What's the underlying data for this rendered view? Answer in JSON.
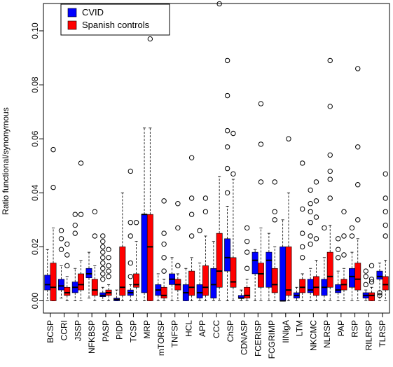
{
  "chart_data": {
    "type": "box",
    "ylabel": "Ratio functional/synonymous",
    "xlabel": "",
    "title": "",
    "ylim": [
      0,
      0.108
    ],
    "yticks": [
      0.0,
      0.02,
      0.04,
      0.06,
      0.08,
      0.1
    ],
    "ytick_labels": [
      "0.00",
      "0.02",
      "0.04",
      "0.06",
      "0.08",
      "0.10"
    ],
    "legend": {
      "position": "top-left"
    },
    "categories": [
      "BCSP",
      "CCRI",
      "JSSP",
      "NFKBSP",
      "PASP",
      "PIDP",
      "TCSP",
      "MRP",
      "mTORSP",
      "TNFSP",
      "HCL",
      "APP",
      "CCC",
      "ChSP",
      "CDNASP",
      "FCERISP",
      "FCGRIMP",
      "IINlgA",
      "LTM",
      "NKCMC",
      "NLRSP",
      "PAP",
      "RSP",
      "RILRSP",
      "TLRSP"
    ],
    "series": [
      {
        "name": "CVID",
        "color": "#0000ff",
        "boxes": [
          {
            "min": 0.0,
            "q1": 0.004,
            "median": 0.006,
            "q3": 0.0095,
            "max": 0.019,
            "outliers": []
          },
          {
            "min": 0.001,
            "q1": 0.004,
            "median": 0.0055,
            "q3": 0.008,
            "max": 0.013,
            "outliers": [
              0.019,
              0.023,
              0.026
            ]
          },
          {
            "min": 0.0,
            "q1": 0.003,
            "median": 0.005,
            "q3": 0.007,
            "max": 0.012,
            "outliers": [
              0.025,
              0.028,
              0.032
            ]
          },
          {
            "min": 0.001,
            "q1": 0.0085,
            "median": 0.01,
            "q3": 0.012,
            "max": 0.018,
            "outliers": []
          },
          {
            "min": 0.0,
            "q1": 0.0015,
            "median": 0.002,
            "q3": 0.003,
            "max": 0.005,
            "outliers": [
              0.008,
              0.01,
              0.012,
              0.014,
              0.016,
              0.018,
              0.02,
              0.022,
              0.024
            ]
          },
          {
            "min": 0.0,
            "q1": 0.0,
            "median": 0.0005,
            "q3": 0.001,
            "max": 0.004,
            "outliers": []
          },
          {
            "min": 0.0,
            "q1": 0.002,
            "median": 0.003,
            "q3": 0.004,
            "max": 0.006,
            "outliers": [
              0.009,
              0.014,
              0.024,
              0.029,
              0.048
            ]
          },
          {
            "min": 0.0,
            "q1": 0.003,
            "median": 0.032,
            "q3": 0.032,
            "max": 0.064,
            "outliers": []
          },
          {
            "min": 0.0,
            "q1": 0.002,
            "median": 0.004,
            "q3": 0.006,
            "max": 0.01,
            "outliers": []
          },
          {
            "min": 0.0,
            "q1": 0.006,
            "median": 0.008,
            "q3": 0.01,
            "max": 0.016,
            "outliers": []
          },
          {
            "min": 0.0,
            "q1": 0.0,
            "median": 0.003,
            "q3": 0.006,
            "max": 0.012,
            "outliers": []
          },
          {
            "min": 0.0,
            "q1": 0.001,
            "median": 0.003,
            "q3": 0.006,
            "max": 0.014,
            "outliers": [
              0.026
            ]
          },
          {
            "min": 0.0,
            "q1": 0.001,
            "median": 0.006,
            "q3": 0.012,
            "max": 0.022,
            "outliers": []
          },
          {
            "min": 0.0,
            "q1": 0.011,
            "median": 0.016,
            "q3": 0.023,
            "max": 0.035,
            "outliers": [
              0.04,
              0.049,
              0.057,
              0.063,
              0.076,
              0.089
            ]
          },
          {
            "min": 0.0,
            "q1": 0.001,
            "median": 0.001,
            "q3": 0.002,
            "max": 0.004,
            "outliers": []
          },
          {
            "min": 0.0,
            "q1": 0.01,
            "median": 0.015,
            "q3": 0.018,
            "max": 0.019,
            "outliers": []
          },
          {
            "min": 0.0,
            "q1": 0.005,
            "median": 0.015,
            "q3": 0.018,
            "max": 0.025,
            "outliers": []
          },
          {
            "min": 0.0,
            "q1": 0.0,
            "median": 0.0,
            "q3": 0.02,
            "max": 0.03,
            "outliers": []
          },
          {
            "min": 0.0,
            "q1": 0.001,
            "median": 0.002,
            "q3": 0.003,
            "max": 0.005,
            "outliers": []
          },
          {
            "min": 0.0,
            "q1": 0.003,
            "median": 0.004,
            "q3": 0.008,
            "max": 0.012,
            "outliers": [
              0.021,
              0.024,
              0.029,
              0.033,
              0.036,
              0.041
            ]
          },
          {
            "min": 0.0,
            "q1": 0.002,
            "median": 0.005,
            "q3": 0.008,
            "max": 0.016,
            "outliers": [
              0.027
            ]
          },
          {
            "min": 0.0,
            "q1": 0.003,
            "median": 0.004,
            "q3": 0.006,
            "max": 0.011,
            "outliers": [
              0.016,
              0.019,
              0.023
            ]
          },
          {
            "min": 0.0,
            "q1": 0.005,
            "median": 0.009,
            "q3": 0.012,
            "max": 0.018,
            "outliers": [
              0.024,
              0.027
            ]
          },
          {
            "min": 0.0,
            "q1": 0.001,
            "median": 0.002,
            "q3": 0.003,
            "max": 0.004,
            "outliers": [
              0.006,
              0.009,
              0.011
            ]
          },
          {
            "min": 0.0,
            "q1": 0.008,
            "median": 0.009,
            "q3": 0.011,
            "max": 0.014,
            "outliers": [
              0.002,
              0.003
            ]
          }
        ]
      },
      {
        "name": "Spanish controls",
        "color": "#ff0000",
        "boxes": [
          {
            "min": 0.0,
            "q1": 0.0,
            "median": 0.005,
            "q3": 0.014,
            "max": 0.027,
            "outliers": [
              0.042,
              0.056
            ]
          },
          {
            "min": 0.0,
            "q1": 0.002,
            "median": 0.003,
            "q3": 0.005,
            "max": 0.009,
            "outliers": [
              0.013,
              0.017,
              0.021
            ]
          },
          {
            "min": 0.0,
            "q1": 0.004,
            "median": 0.006,
            "q3": 0.01,
            "max": 0.015,
            "outliers": [
              0.032,
              0.051
            ]
          },
          {
            "min": 0.0,
            "q1": 0.002,
            "median": 0.004,
            "q3": 0.008,
            "max": 0.013,
            "outliers": [
              0.024,
              0.033
            ]
          },
          {
            "min": 0.0,
            "q1": 0.002,
            "median": 0.003,
            "q3": 0.004,
            "max": 0.006,
            "outliers": [
              0.009,
              0.011,
              0.013,
              0.016,
              0.019
            ]
          },
          {
            "min": 0.0,
            "q1": 0.002,
            "median": 0.005,
            "q3": 0.02,
            "max": 0.04,
            "outliers": []
          },
          {
            "min": 0.0,
            "q1": 0.005,
            "median": 0.006,
            "q3": 0.01,
            "max": 0.022,
            "outliers": [
              0.029
            ]
          },
          {
            "min": 0.0,
            "q1": 0.0,
            "median": 0.02,
            "q3": 0.032,
            "max": 0.064,
            "outliers": [
              0.097
            ]
          },
          {
            "min": 0.0,
            "q1": 0.001,
            "median": 0.002,
            "q3": 0.005,
            "max": 0.008,
            "outliers": [
              0.011,
              0.016,
              0.021,
              0.025,
              0.037
            ]
          },
          {
            "min": 0.0,
            "q1": 0.004,
            "median": 0.006,
            "q3": 0.008,
            "max": 0.01,
            "outliers": [
              0.013,
              0.027,
              0.036
            ]
          },
          {
            "min": 0.0,
            "q1": 0.002,
            "median": 0.005,
            "q3": 0.011,
            "max": 0.016,
            "outliers": [
              0.024,
              0.032,
              0.038,
              0.053
            ]
          },
          {
            "min": 0.0,
            "q1": 0.002,
            "median": 0.005,
            "q3": 0.013,
            "max": 0.024,
            "outliers": [
              0.033,
              0.038
            ]
          },
          {
            "min": 0.0,
            "q1": 0.005,
            "median": 0.011,
            "q3": 0.025,
            "max": 0.046,
            "outliers": [
              0.11
            ]
          },
          {
            "min": 0.0,
            "q1": 0.005,
            "median": 0.007,
            "q3": 0.016,
            "max": 0.045,
            "outliers": [
              0.047,
              0.062
            ]
          },
          {
            "min": 0.0,
            "q1": 0.001,
            "median": 0.002,
            "q3": 0.005,
            "max": 0.008,
            "outliers": [
              0.012,
              0.018,
              0.022,
              0.027
            ]
          },
          {
            "min": 0.0,
            "q1": 0.005,
            "median": 0.01,
            "q3": 0.014,
            "max": 0.027,
            "outliers": [
              0.044,
              0.058,
              0.073
            ]
          },
          {
            "min": 0.0,
            "q1": 0.003,
            "median": 0.006,
            "q3": 0.012,
            "max": 0.02,
            "outliers": [
              0.03,
              0.033,
              0.044
            ]
          },
          {
            "min": 0.0,
            "q1": 0.002,
            "median": 0.004,
            "q3": 0.02,
            "max": 0.04,
            "outliers": [
              0.06
            ]
          },
          {
            "min": 0.0,
            "q1": 0.003,
            "median": 0.005,
            "q3": 0.008,
            "max": 0.01,
            "outliers": [
              0.016,
              0.02,
              0.025,
              0.034,
              0.051
            ]
          },
          {
            "min": 0.0,
            "q1": 0.002,
            "median": 0.005,
            "q3": 0.009,
            "max": 0.015,
            "outliers": [
              0.023,
              0.031,
              0.037,
              0.044
            ]
          },
          {
            "min": 0.0,
            "q1": 0.005,
            "median": 0.009,
            "q3": 0.018,
            "max": 0.028,
            "outliers": [
              0.038,
              0.045,
              0.048,
              0.054,
              0.072,
              0.089
            ]
          },
          {
            "min": 0.0,
            "q1": 0.004,
            "median": 0.006,
            "q3": 0.008,
            "max": 0.012,
            "outliers": [
              0.017,
              0.024,
              0.033
            ]
          },
          {
            "min": 0.0,
            "q1": 0.004,
            "median": 0.008,
            "q3": 0.014,
            "max": 0.023,
            "outliers": [
              0.03,
              0.043,
              0.057,
              0.086
            ]
          },
          {
            "min": 0.0,
            "q1": 0.0,
            "median": 0.002,
            "q3": 0.003,
            "max": 0.005,
            "outliers": [
              0.007,
              0.008,
              0.013
            ]
          },
          {
            "min": 0.0,
            "q1": 0.004,
            "median": 0.006,
            "q3": 0.009,
            "max": 0.015,
            "outliers": [
              0.024,
              0.028,
              0.033,
              0.038,
              0.047
            ]
          }
        ]
      }
    ]
  }
}
